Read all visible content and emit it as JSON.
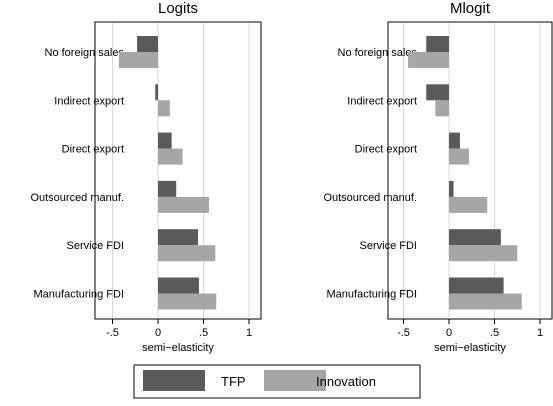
{
  "chart_data": [
    {
      "type": "bar",
      "orientation": "horizontal",
      "title": "Logits",
      "xlabel": "semi−elasticity",
      "xlim": [
        -0.6,
        1.05
      ],
      "xticks": [
        -0.5,
        0,
        0.5,
        1
      ],
      "xtick_labels": [
        "-.5",
        "0",
        ".5",
        "1"
      ],
      "grid": "vertical",
      "categories": [
        "No foreign sales",
        "Indirect export",
        "Direct export",
        "Outsourced manuf.",
        "Service FDI",
        "Manufacturing FDI"
      ],
      "series": [
        {
          "name": "TFP",
          "values": [
            -0.23,
            -0.03,
            0.15,
            0.2,
            0.44,
            0.45
          ]
        },
        {
          "name": "Innovation",
          "values": [
            -0.43,
            0.13,
            0.27,
            0.56,
            0.63,
            0.64
          ]
        }
      ]
    },
    {
      "type": "bar",
      "orientation": "horizontal",
      "title": "Mlogit",
      "xlabel": "semi−elasticity",
      "xlim": [
        -0.6,
        1.05
      ],
      "xticks": [
        -0.5,
        0,
        0.5,
        1
      ],
      "xtick_labels": [
        "-.5",
        "0",
        ".5",
        "1"
      ],
      "grid": "vertical",
      "categories": [
        "No foreign sales",
        "Indirect export",
        "Direct export",
        "Outsourced manuf.",
        "Service FDI",
        "Manufacturing FDI"
      ],
      "series": [
        {
          "name": "TFP",
          "values": [
            -0.25,
            -0.25,
            0.12,
            0.05,
            0.57,
            0.6
          ]
        },
        {
          "name": "Innovation",
          "values": [
            -0.45,
            -0.15,
            0.22,
            0.42,
            0.75,
            0.8
          ]
        }
      ]
    }
  ],
  "legend": {
    "placement": "bottom",
    "items": [
      {
        "label": "TFP",
        "color": "#5a5a5a"
      },
      {
        "label": "Innovation",
        "color": "#a6a6a6"
      }
    ]
  },
  "colors": {
    "tfp": "#5a5a5a",
    "innovation": "#a6a6a6",
    "grid": "#d9d9d9",
    "axis": "#000000"
  }
}
